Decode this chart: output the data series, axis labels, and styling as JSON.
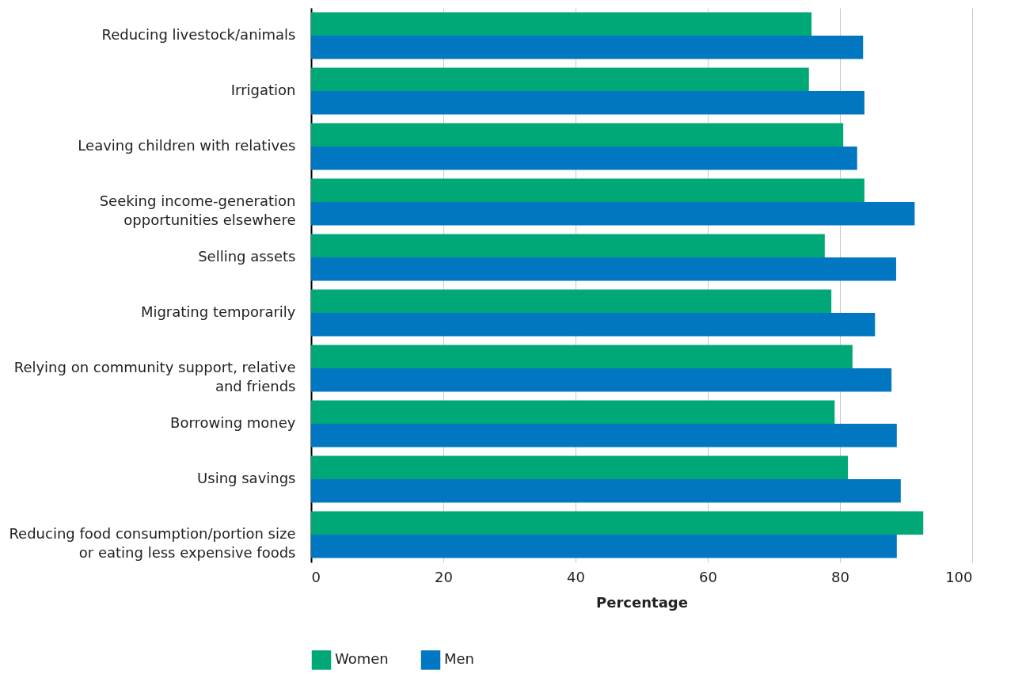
{
  "chart_data": {
    "type": "bar",
    "orientation": "horizontal",
    "xlabel": "Percentage",
    "categories": [
      "Reducing livestock/animals",
      "Irrigation",
      "Leaving children with relatives",
      "Seeking income-generation opportunities elsewhere",
      "Selling assets",
      "Migrating temporarily",
      "Relying on community support, relative and friends",
      "Borrowing money",
      "Using savings",
      "Reducing food consumption/portion size or eating less expensive foods"
    ],
    "series": [
      {
        "name": "Women",
        "color": "#00a878",
        "values": [
          75.7,
          75.3,
          80.5,
          83.7,
          77.7,
          78.7,
          81.9,
          79.2,
          81.2,
          92.6
        ]
      },
      {
        "name": "Men",
        "color": "#0077c0",
        "values": [
          83.5,
          83.7,
          82.6,
          91.3,
          88.5,
          85.3,
          87.8,
          88.6,
          89.2,
          88.6
        ]
      }
    ],
    "xlim": [
      0,
      100
    ],
    "xticks": [
      0,
      20,
      40,
      60,
      80,
      100
    ],
    "grid": "x",
    "legend": "bottom"
  }
}
